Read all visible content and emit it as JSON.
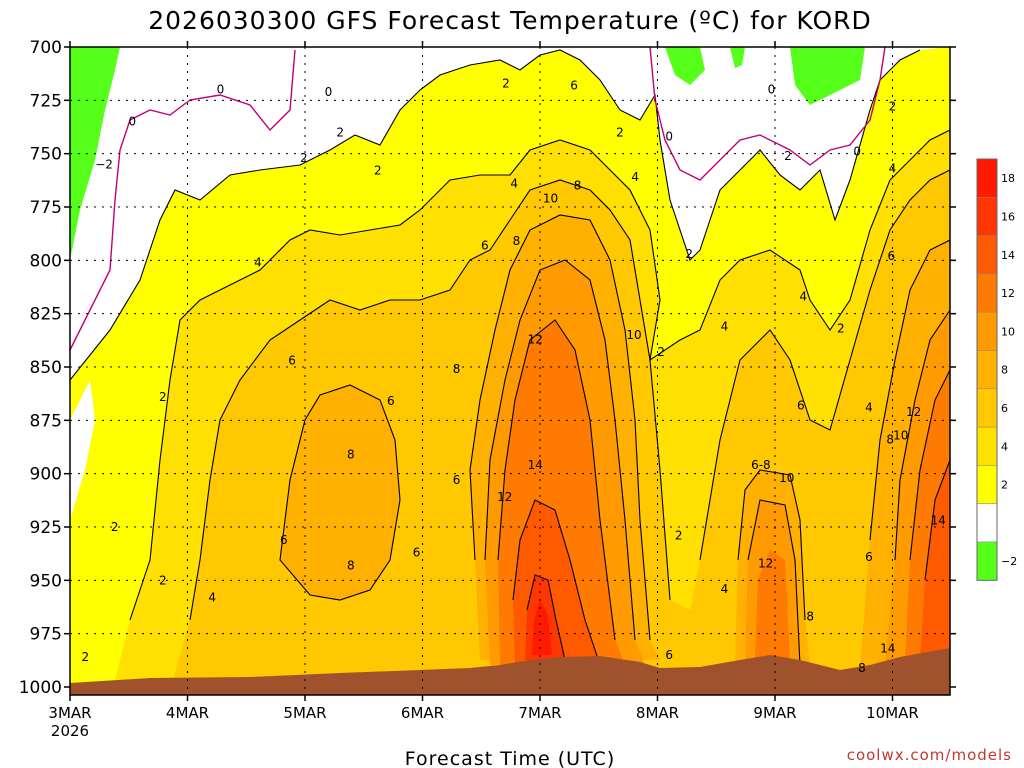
{
  "chart_data": {
    "type": "heatmap",
    "title": "2026030300 GFS Forecast Temperature (ºC) for KORD",
    "xlabel": "Forecast Time (UTC)",
    "ylabel": "",
    "credit": "coolwx.com/models",
    "x_range_days": [
      0,
      7.5
    ],
    "y_range_hpa": [
      700,
      1000
    ],
    "y_ticks": [
      700,
      725,
      750,
      775,
      800,
      825,
      850,
      875,
      900,
      925,
      950,
      975,
      1000
    ],
    "x_ticks": [
      {
        "label": "3MAR",
        "sub": "2026",
        "day": 0
      },
      {
        "label": "4MAR",
        "sub": "",
        "day": 1
      },
      {
        "label": "5MAR",
        "sub": "",
        "day": 2
      },
      {
        "label": "6MAR",
        "sub": "",
        "day": 3
      },
      {
        "label": "7MAR",
        "sub": "",
        "day": 4
      },
      {
        "label": "8MAR",
        "sub": "",
        "day": 5
      },
      {
        "label": "9MAR",
        "sub": "",
        "day": 6
      },
      {
        "label": "10MAR",
        "sub": "",
        "day": 7
      }
    ],
    "legend": {
      "levels": [
        {
          "label": "18",
          "color": "#ff1a00"
        },
        {
          "label": "16",
          "color": "#ff3600"
        },
        {
          "label": "14",
          "color": "#ff5a00"
        },
        {
          "label": "12",
          "color": "#ff7a00"
        },
        {
          "label": "10",
          "color": "#ff9a00"
        },
        {
          "label": "8",
          "color": "#ffb000"
        },
        {
          "label": "6",
          "color": "#ffc800"
        },
        {
          "label": "4",
          "color": "#ffe000"
        },
        {
          "label": "2",
          "color": "#ffff00"
        },
        {
          "label": "",
          "color": "#ffffff"
        },
        {
          "label": "−2",
          "color": "#55ff1a"
        }
      ]
    },
    "surface_pressure_hpa": [
      {
        "day": 0,
        "p": 996
      },
      {
        "day": 0.5,
        "p": 995
      },
      {
        "day": 1,
        "p": 995
      },
      {
        "day": 1.5,
        "p": 995
      },
      {
        "day": 2,
        "p": 994
      },
      {
        "day": 2.5,
        "p": 993
      },
      {
        "day": 3,
        "p": 993
      },
      {
        "day": 3.5,
        "p": 993
      },
      {
        "day": 3.8,
        "p": 991
      },
      {
        "day": 4.0,
        "p": 990
      },
      {
        "day": 4.5,
        "p": 989
      },
      {
        "day": 4.9,
        "p": 993
      },
      {
        "day": 5.0,
        "p": 994
      },
      {
        "day": 5.5,
        "p": 993
      },
      {
        "day": 6.0,
        "p": 990
      },
      {
        "day": 6.5,
        "p": 993
      },
      {
        "day": 6.7,
        "p": 993
      },
      {
        "day": 7.0,
        "p": 991
      },
      {
        "day": 7.5,
        "p": 986
      }
    ],
    "temperature_field": [
      {
        "day": 0,
        "profile": [
          {
            "p": 700,
            "t": -3
          },
          {
            "p": 775,
            "t": -1
          },
          {
            "p": 850,
            "t": 2
          },
          {
            "p": 950,
            "t": 2
          },
          {
            "p": 1000,
            "t": 0
          }
        ]
      },
      {
        "day": 0.5,
        "profile": [
          {
            "p": 700,
            "t": -1
          },
          {
            "p": 750,
            "t": 1
          },
          {
            "p": 850,
            "t": 3
          },
          {
            "p": 950,
            "t": 2
          },
          {
            "p": 1000,
            "t": 0
          }
        ]
      },
      {
        "day": 1.0,
        "profile": [
          {
            "p": 700,
            "t": 0
          },
          {
            "p": 775,
            "t": 3
          },
          {
            "p": 850,
            "t": 5
          },
          {
            "p": 950,
            "t": 4
          },
          {
            "p": 1000,
            "t": 2
          }
        ]
      },
      {
        "day": 2.0,
        "profile": [
          {
            "p": 700,
            "t": 0
          },
          {
            "p": 775,
            "t": 4
          },
          {
            "p": 850,
            "t": 6
          },
          {
            "p": 900,
            "t": 8
          },
          {
            "p": 975,
            "t": 6
          }
        ]
      },
      {
        "day": 3.0,
        "profile": [
          {
            "p": 700,
            "t": 1
          },
          {
            "p": 775,
            "t": 4
          },
          {
            "p": 850,
            "t": 6
          },
          {
            "p": 900,
            "t": 7
          },
          {
            "p": 975,
            "t": 6
          }
        ]
      },
      {
        "day": 4.0,
        "profile": [
          {
            "p": 700,
            "t": 5
          },
          {
            "p": 775,
            "t": 10
          },
          {
            "p": 850,
            "t": 12
          },
          {
            "p": 900,
            "t": 14
          },
          {
            "p": 975,
            "t": 18
          }
        ]
      },
      {
        "day": 4.5,
        "profile": [
          {
            "p": 700,
            "t": 3
          },
          {
            "p": 775,
            "t": 7
          },
          {
            "p": 850,
            "t": 10
          },
          {
            "p": 925,
            "t": 13
          },
          {
            "p": 975,
            "t": 16
          }
        ]
      },
      {
        "day": 5.0,
        "profile": [
          {
            "p": 700,
            "t": 0
          },
          {
            "p": 775,
            "t": 1
          },
          {
            "p": 850,
            "t": 1
          },
          {
            "p": 925,
            "t": 2
          },
          {
            "p": 975,
            "t": 4
          }
        ]
      },
      {
        "day": 6.0,
        "profile": [
          {
            "p": 700,
            "t": 0
          },
          {
            "p": 775,
            "t": 2
          },
          {
            "p": 850,
            "t": 4
          },
          {
            "p": 925,
            "t": 10
          },
          {
            "p": 975,
            "t": 12
          }
        ]
      },
      {
        "day": 6.5,
        "profile": [
          {
            "p": 700,
            "t": -1
          },
          {
            "p": 775,
            "t": 2
          },
          {
            "p": 850,
            "t": 3
          },
          {
            "p": 925,
            "t": 6
          },
          {
            "p": 975,
            "t": 8
          }
        ]
      },
      {
        "day": 7.5,
        "profile": [
          {
            "p": 700,
            "t": 2
          },
          {
            "p": 775,
            "t": 6
          },
          {
            "p": 850,
            "t": 10
          },
          {
            "p": 925,
            "t": 14
          },
          {
            "p": 975,
            "t": 16
          }
        ]
      }
    ],
    "contour_labels": [
      {
        "text": "0",
        "day": 0.53,
        "p": 735
      },
      {
        "text": "−2",
        "day": 0.29,
        "p": 755
      },
      {
        "text": "2",
        "day": 0.79,
        "p": 864
      },
      {
        "text": "2",
        "day": 0.38,
        "p": 925
      },
      {
        "text": "2",
        "day": 0.79,
        "p": 950
      },
      {
        "text": "2",
        "day": 0.13,
        "p": 986
      },
      {
        "text": "0",
        "day": 1.28,
        "p": 720
      },
      {
        "text": "4",
        "day": 1.6,
        "p": 801
      },
      {
        "text": "4",
        "day": 1.21,
        "p": 958
      },
      {
        "text": "2",
        "day": 1.99,
        "p": 752
      },
      {
        "text": "6",
        "day": 1.89,
        "p": 847
      },
      {
        "text": "6",
        "day": 1.82,
        "p": 931
      },
      {
        "text": "0",
        "day": 2.2,
        "p": 721
      },
      {
        "text": "2",
        "day": 2.3,
        "p": 740
      },
      {
        "text": "2",
        "day": 2.62,
        "p": 758
      },
      {
        "text": "6",
        "day": 2.73,
        "p": 866
      },
      {
        "text": "8",
        "day": 2.39,
        "p": 891
      },
      {
        "text": "8",
        "day": 2.39,
        "p": 943
      },
      {
        "text": "6",
        "day": 2.95,
        "p": 937
      },
      {
        "text": "8",
        "day": 3.29,
        "p": 851
      },
      {
        "text": "6",
        "day": 3.29,
        "p": 903
      },
      {
        "text": "6",
        "day": 3.53,
        "p": 793
      },
      {
        "text": "2",
        "day": 3.71,
        "p": 717
      },
      {
        "text": "4",
        "day": 3.78,
        "p": 764
      },
      {
        "text": "8",
        "day": 3.8,
        "p": 791
      },
      {
        "text": "12",
        "day": 3.7,
        "p": 911
      },
      {
        "text": "12",
        "day": 3.96,
        "p": 837
      },
      {
        "text": "14",
        "day": 3.96,
        "p": 896
      },
      {
        "text": "10",
        "day": 4.09,
        "p": 771
      },
      {
        "text": "8",
        "day": 4.32,
        "p": 765
      },
      {
        "text": "6",
        "day": 4.29,
        "p": 718
      },
      {
        "text": "2",
        "day": 4.68,
        "p": 740
      },
      {
        "text": "4",
        "day": 4.81,
        "p": 761
      },
      {
        "text": "10",
        "day": 4.8,
        "p": 835
      },
      {
        "text": "2",
        "day": 5.03,
        "p": 843
      },
      {
        "text": "0",
        "day": 5.1,
        "p": 742
      },
      {
        "text": "2",
        "day": 5.27,
        "p": 797
      },
      {
        "text": "2",
        "day": 5.18,
        "p": 929
      },
      {
        "text": "6",
        "day": 5.1,
        "p": 985
      },
      {
        "text": "4",
        "day": 5.57,
        "p": 831
      },
      {
        "text": "4",
        "day": 5.57,
        "p": 954
      },
      {
        "text": "6-8",
        "day": 5.88,
        "p": 896
      },
      {
        "text": "12",
        "day": 5.92,
        "p": 942
      },
      {
        "text": "10",
        "day": 6.1,
        "p": 902
      },
      {
        "text": "6",
        "day": 6.22,
        "p": 868
      },
      {
        "text": "8",
        "day": 6.3,
        "p": 967
      },
      {
        "text": "0",
        "day": 5.97,
        "p": 720
      },
      {
        "text": "2",
        "day": 6.11,
        "p": 751
      },
      {
        "text": "4",
        "day": 6.24,
        "p": 817
      },
      {
        "text": "2",
        "day": 6.56,
        "p": 832
      },
      {
        "text": "0",
        "day": 6.7,
        "p": 749
      },
      {
        "text": "4",
        "day": 6.8,
        "p": 869
      },
      {
        "text": "6",
        "day": 6.8,
        "p": 939
      },
      {
        "text": "8",
        "day": 6.74,
        "p": 991
      },
      {
        "text": "14",
        "day": 6.96,
        "p": 982
      },
      {
        "text": "2",
        "day": 7.0,
        "p": 728
      },
      {
        "text": "4",
        "day": 7.0,
        "p": 757
      },
      {
        "text": "6",
        "day": 6.99,
        "p": 798
      },
      {
        "text": "8",
        "day": 6.98,
        "p": 884
      },
      {
        "text": "10",
        "day": 7.07,
        "p": 882
      },
      {
        "text": "12",
        "day": 7.18,
        "p": 871
      },
      {
        "text": "14",
        "day": 7.39,
        "p": 922
      }
    ]
  }
}
